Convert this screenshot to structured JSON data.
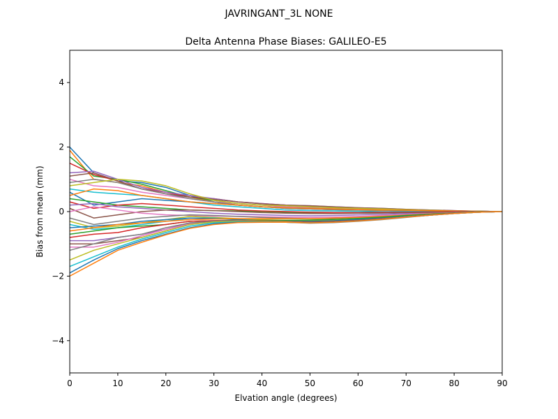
{
  "chart_data": {
    "type": "line",
    "suptitle": "JAVRINGANT_3L   NONE",
    "title": "Delta Antenna Phase Biases: GALILEO-E5",
    "xlabel": "Elvation angle (degrees)",
    "ylabel": "Bias from mean (mm)",
    "xlim": [
      0,
      90
    ],
    "ylim": [
      -5,
      5
    ],
    "xticks": [
      0,
      10,
      20,
      30,
      40,
      50,
      60,
      70,
      80,
      90
    ],
    "yticks": [
      -4,
      -2,
      0,
      2,
      4
    ],
    "ytick_labels": [
      "−4",
      "−2",
      "0",
      "2",
      "4"
    ],
    "grid": false,
    "legend": "none",
    "x": [
      0,
      5,
      10,
      15,
      20,
      25,
      30,
      35,
      40,
      45,
      50,
      55,
      60,
      65,
      70,
      75,
      80,
      85,
      90
    ],
    "colors": [
      "#1f77b4",
      "#ff7f0e",
      "#2ca02c",
      "#d62728",
      "#9467bd",
      "#8c564b",
      "#e377c2",
      "#7f7f7f",
      "#bcbd22",
      "#17becf"
    ],
    "series": [
      {
        "values": [
          2.0,
          1.2,
          0.95,
          0.9,
          0.75,
          0.5,
          0.3,
          0.2,
          0.15,
          0.1,
          0.08,
          0.06,
          0.05,
          0.04,
          0.03,
          0.02,
          0.01,
          0.0,
          0.0
        ]
      },
      {
        "values": [
          1.9,
          1.0,
          0.9,
          0.8,
          0.6,
          0.45,
          0.3,
          0.2,
          0.15,
          0.1,
          0.08,
          0.06,
          0.05,
          0.04,
          0.03,
          0.02,
          0.01,
          0.0,
          0.0
        ]
      },
      {
        "values": [
          1.7,
          1.1,
          1.0,
          0.85,
          0.65,
          0.45,
          0.35,
          0.25,
          0.2,
          0.15,
          0.12,
          0.1,
          0.08,
          0.06,
          0.04,
          0.03,
          0.02,
          0.01,
          0.0
        ]
      },
      {
        "values": [
          1.5,
          1.15,
          0.95,
          0.7,
          0.6,
          0.45,
          0.4,
          0.3,
          0.25,
          0.2,
          0.15,
          0.12,
          0.1,
          0.08,
          0.06,
          0.04,
          0.02,
          0.01,
          0.0
        ]
      },
      {
        "values": [
          1.2,
          1.25,
          1.0,
          0.75,
          0.6,
          0.5,
          0.4,
          0.3,
          0.25,
          0.2,
          0.18,
          0.15,
          0.12,
          0.1,
          0.07,
          0.05,
          0.03,
          0.01,
          0.0
        ]
      },
      {
        "values": [
          1.1,
          1.2,
          0.95,
          0.7,
          0.55,
          0.45,
          0.38,
          0.3,
          0.24,
          0.2,
          0.18,
          0.15,
          0.12,
          0.1,
          0.07,
          0.05,
          0.03,
          0.01,
          0.0
        ]
      },
      {
        "values": [
          1.0,
          0.8,
          0.75,
          0.6,
          0.5,
          0.4,
          0.3,
          0.25,
          0.2,
          0.15,
          0.12,
          0.1,
          0.08,
          0.06,
          0.04,
          0.03,
          0.02,
          0.01,
          0.0
        ]
      },
      {
        "values": [
          0.9,
          1.0,
          0.9,
          0.7,
          0.55,
          0.4,
          0.3,
          0.2,
          0.15,
          0.1,
          0.08,
          0.06,
          0.05,
          0.04,
          0.03,
          0.02,
          0.01,
          0.0,
          0.0
        ]
      },
      {
        "values": [
          0.8,
          0.9,
          1.0,
          0.95,
          0.8,
          0.55,
          0.35,
          0.25,
          0.2,
          0.18,
          0.15,
          0.12,
          0.1,
          0.08,
          0.06,
          0.04,
          0.02,
          0.01,
          0.0
        ]
      },
      {
        "values": [
          0.7,
          0.6,
          0.55,
          0.5,
          0.4,
          0.3,
          0.2,
          0.15,
          0.1,
          0.05,
          0.03,
          0.02,
          0.01,
          0.0,
          0.0,
          0.0,
          0.0,
          0.0,
          0.0
        ]
      },
      {
        "values": [
          0.6,
          0.2,
          0.3,
          0.4,
          0.35,
          0.3,
          0.25,
          0.2,
          0.15,
          0.12,
          0.1,
          0.08,
          0.06,
          0.05,
          0.04,
          0.03,
          0.02,
          0.01,
          0.0
        ]
      },
      {
        "values": [
          0.5,
          0.7,
          0.65,
          0.5,
          0.4,
          0.3,
          0.25,
          0.2,
          0.15,
          0.12,
          0.1,
          0.08,
          0.06,
          0.05,
          0.04,
          0.03,
          0.02,
          0.01,
          0.0
        ]
      },
      {
        "values": [
          0.4,
          0.3,
          0.2,
          0.15,
          0.1,
          0.05,
          0.03,
          0.02,
          0.0,
          -0.02,
          -0.04,
          -0.05,
          -0.05,
          -0.04,
          -0.03,
          -0.02,
          -0.01,
          0.0,
          0.0
        ]
      },
      {
        "values": [
          0.3,
          0.1,
          0.2,
          0.25,
          0.2,
          0.15,
          0.1,
          0.05,
          0.02,
          0.0,
          -0.02,
          -0.03,
          -0.03,
          -0.02,
          -0.02,
          -0.01,
          0.0,
          0.0,
          0.0
        ]
      },
      {
        "values": [
          0.2,
          0.25,
          0.15,
          0.1,
          0.05,
          0.0,
          -0.05,
          -0.08,
          -0.1,
          -0.12,
          -0.13,
          -0.12,
          -0.1,
          -0.08,
          -0.06,
          -0.04,
          -0.02,
          -0.01,
          0.0
        ]
      },
      {
        "values": [
          0.1,
          -0.2,
          -0.1,
          0.0,
          0.05,
          0.05,
          0.03,
          0.0,
          -0.03,
          -0.05,
          -0.06,
          -0.06,
          -0.05,
          -0.04,
          -0.03,
          -0.02,
          -0.01,
          0.0,
          0.0
        ]
      },
      {
        "values": [
          0.0,
          0.15,
          0.05,
          -0.05,
          -0.1,
          -0.12,
          -0.14,
          -0.15,
          -0.16,
          -0.17,
          -0.18,
          -0.17,
          -0.15,
          -0.12,
          -0.09,
          -0.06,
          -0.03,
          -0.01,
          0.0
        ]
      },
      {
        "values": [
          -0.2,
          -0.4,
          -0.3,
          -0.2,
          -0.15,
          -0.1,
          -0.12,
          -0.15,
          -0.18,
          -0.2,
          -0.22,
          -0.21,
          -0.18,
          -0.15,
          -0.11,
          -0.07,
          -0.04,
          -0.01,
          0.0
        ]
      },
      {
        "values": [
          -0.3,
          -0.5,
          -0.45,
          -0.35,
          -0.25,
          -0.15,
          -0.18,
          -0.22,
          -0.25,
          -0.27,
          -0.28,
          -0.26,
          -0.22,
          -0.18,
          -0.13,
          -0.08,
          -0.04,
          -0.01,
          0.0
        ]
      },
      {
        "values": [
          -0.4,
          -0.55,
          -0.5,
          -0.4,
          -0.3,
          -0.2,
          -0.2,
          -0.25,
          -0.28,
          -0.3,
          -0.32,
          -0.3,
          -0.26,
          -0.21,
          -0.15,
          -0.1,
          -0.05,
          -0.02,
          0.0
        ]
      },
      {
        "values": [
          -0.5,
          -0.45,
          -0.4,
          -0.3,
          -0.25,
          -0.2,
          -0.22,
          -0.25,
          -0.28,
          -0.3,
          -0.3,
          -0.28,
          -0.24,
          -0.19,
          -0.14,
          -0.09,
          -0.05,
          -0.02,
          0.0
        ]
      },
      {
        "values": [
          -0.6,
          -0.5,
          -0.4,
          -0.35,
          -0.3,
          -0.25,
          -0.23,
          -0.22,
          -0.22,
          -0.22,
          -0.22,
          -0.2,
          -0.18,
          -0.15,
          -0.11,
          -0.07,
          -0.04,
          -0.01,
          0.0
        ]
      },
      {
        "values": [
          -0.7,
          -0.6,
          -0.5,
          -0.45,
          -0.4,
          -0.3,
          -0.28,
          -0.27,
          -0.27,
          -0.27,
          -0.26,
          -0.24,
          -0.21,
          -0.17,
          -0.12,
          -0.08,
          -0.04,
          -0.01,
          0.0
        ]
      },
      {
        "values": [
          -0.8,
          -0.7,
          -0.65,
          -0.5,
          -0.4,
          -0.3,
          -0.28,
          -0.28,
          -0.3,
          -0.32,
          -0.33,
          -0.31,
          -0.27,
          -0.22,
          -0.16,
          -0.1,
          -0.05,
          -0.02,
          0.0
        ]
      },
      {
        "values": [
          -0.9,
          -0.9,
          -0.8,
          -0.7,
          -0.55,
          -0.35,
          -0.3,
          -0.28,
          -0.3,
          -0.32,
          -0.34,
          -0.32,
          -0.28,
          -0.22,
          -0.16,
          -0.1,
          -0.05,
          -0.02,
          0.0
        ]
      },
      {
        "values": [
          -1.0,
          -1.0,
          -0.9,
          -0.8,
          -0.6,
          -0.4,
          -0.3,
          -0.27,
          -0.28,
          -0.3,
          -0.32,
          -0.3,
          -0.27,
          -0.22,
          -0.16,
          -0.1,
          -0.05,
          -0.02,
          0.0
        ]
      },
      {
        "values": [
          -1.1,
          -1.1,
          -0.95,
          -0.75,
          -0.55,
          -0.38,
          -0.3,
          -0.28,
          -0.3,
          -0.32,
          -0.35,
          -0.33,
          -0.29,
          -0.24,
          -0.17,
          -0.11,
          -0.06,
          -0.02,
          0.0
        ]
      },
      {
        "values": [
          -1.2,
          -1.0,
          -0.8,
          -0.7,
          -0.5,
          -0.35,
          -0.3,
          -0.28,
          -0.3,
          -0.33,
          -0.36,
          -0.34,
          -0.3,
          -0.25,
          -0.18,
          -0.11,
          -0.06,
          -0.02,
          0.0
        ]
      },
      {
        "values": [
          -1.5,
          -1.2,
          -1.0,
          -0.8,
          -0.6,
          -0.4,
          -0.32,
          -0.3,
          -0.3,
          -0.32,
          -0.35,
          -0.33,
          -0.29,
          -0.24,
          -0.17,
          -0.11,
          -0.06,
          -0.02,
          0.0
        ]
      },
      {
        "values": [
          -1.7,
          -1.4,
          -1.1,
          -0.85,
          -0.65,
          -0.45,
          -0.35,
          -0.32,
          -0.32,
          -0.33,
          -0.35,
          -0.33,
          -0.29,
          -0.24,
          -0.17,
          -0.11,
          -0.06,
          -0.02,
          0.0
        ]
      },
      {
        "values": [
          -1.9,
          -1.5,
          -1.15,
          -0.9,
          -0.7,
          -0.5,
          -0.38,
          -0.33,
          -0.32,
          -0.33,
          -0.35,
          -0.33,
          -0.29,
          -0.24,
          -0.17,
          -0.11,
          -0.06,
          -0.02,
          0.0
        ]
      },
      {
        "values": [
          -2.0,
          -1.6,
          -1.2,
          -0.95,
          -0.72,
          -0.52,
          -0.4,
          -0.34,
          -0.33,
          -0.33,
          -0.35,
          -0.33,
          -0.29,
          -0.24,
          -0.17,
          -0.11,
          -0.06,
          -0.02,
          0.0
        ]
      }
    ]
  }
}
